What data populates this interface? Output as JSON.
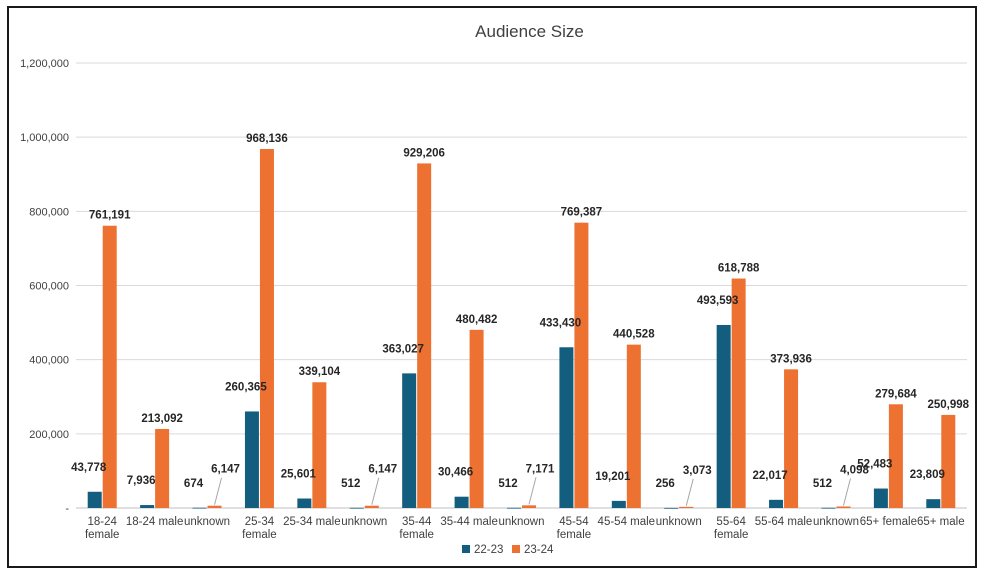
{
  "colors": {
    "s1": "#135e7e",
    "s2": "#ed7131",
    "grid": "#d9d9d9",
    "axis": "#bfbfbf"
  },
  "chart_data": {
    "type": "bar",
    "title": "Audience Size",
    "xlabel": "",
    "ylabel": "",
    "ylim": [
      0,
      1200000
    ],
    "yticks": [
      0,
      200000,
      400000,
      600000,
      800000,
      1000000,
      1200000
    ],
    "ytick_labels": [
      "-",
      "200,000",
      "400,000",
      "600,000",
      "800,000",
      "1,000,000",
      "1,200,000"
    ],
    "grid": true,
    "legend": "bottom",
    "categories": [
      [
        "18-24",
        "female"
      ],
      [
        "18-24 male"
      ],
      [
        "unknown"
      ],
      [
        "25-34",
        "female"
      ],
      [
        "25-34 male"
      ],
      [
        "unknown"
      ],
      [
        "35-44",
        "female"
      ],
      [
        "35-44 male"
      ],
      [
        "unknown"
      ],
      [
        "45-54",
        "female"
      ],
      [
        "45-54 male"
      ],
      [
        "unknown"
      ],
      [
        "55-64",
        "female"
      ],
      [
        "55-64 male"
      ],
      [
        "unknown"
      ],
      [
        "65+ female"
      ],
      [
        "65+ male"
      ]
    ],
    "series": [
      {
        "name": "22-23",
        "values": [
          43778,
          7936,
          674,
          260365,
          25601,
          512,
          363027,
          30466,
          512,
          433430,
          19201,
          256,
          493593,
          22017,
          512,
          52483,
          23809
        ],
        "labels": [
          "43,778",
          "7,936",
          "674",
          "260,365",
          "25,601",
          "512",
          "363,027",
          "30,466",
          "512",
          "433,430",
          "19,201",
          "256",
          "493,593",
          "22,017",
          "512",
          "52,483",
          "23,809"
        ]
      },
      {
        "name": "23-24",
        "values": [
          761191,
          213092,
          6147,
          968136,
          339104,
          6147,
          929206,
          480482,
          7171,
          769387,
          440528,
          3073,
          618788,
          373936,
          4098,
          279684,
          250998
        ],
        "labels": [
          "761,191",
          "213,092",
          "6,147",
          "968,136",
          "339,104",
          "6,147",
          "929,206",
          "480,482",
          "7,171",
          "769,387",
          "440,528",
          "3,073",
          "618,788",
          "373,936",
          "4,098",
          "279,684",
          "250,998"
        ]
      }
    ]
  }
}
